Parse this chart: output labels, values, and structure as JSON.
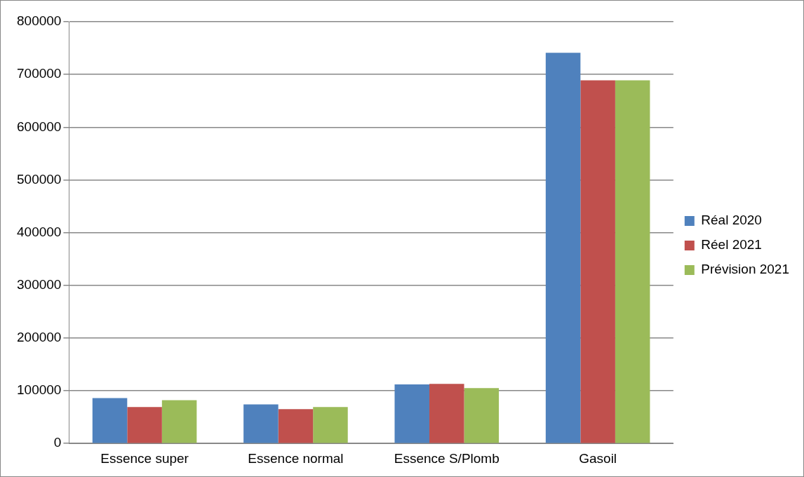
{
  "chart_data": {
    "type": "bar",
    "categories": [
      "Essence super",
      "Essence normal",
      "Essence S/Plomb",
      "Gasoil"
    ],
    "series": [
      {
        "name": "Réal 2020",
        "color": "#4f81bd",
        "values": [
          86000,
          74000,
          112000,
          741000
        ]
      },
      {
        "name": "Réel 2021",
        "color": "#c0504d",
        "values": [
          69000,
          65000,
          113000,
          689000
        ]
      },
      {
        "name": "Prévision 2021",
        "color": "#9bbb59",
        "values": [
          82000,
          69000,
          105000,
          689000
        ]
      }
    ],
    "ylim": [
      0,
      800000
    ],
    "yticks": [
      0,
      100000,
      200000,
      300000,
      400000,
      500000,
      600000,
      700000,
      800000
    ],
    "grid": "y",
    "legend": "right"
  }
}
